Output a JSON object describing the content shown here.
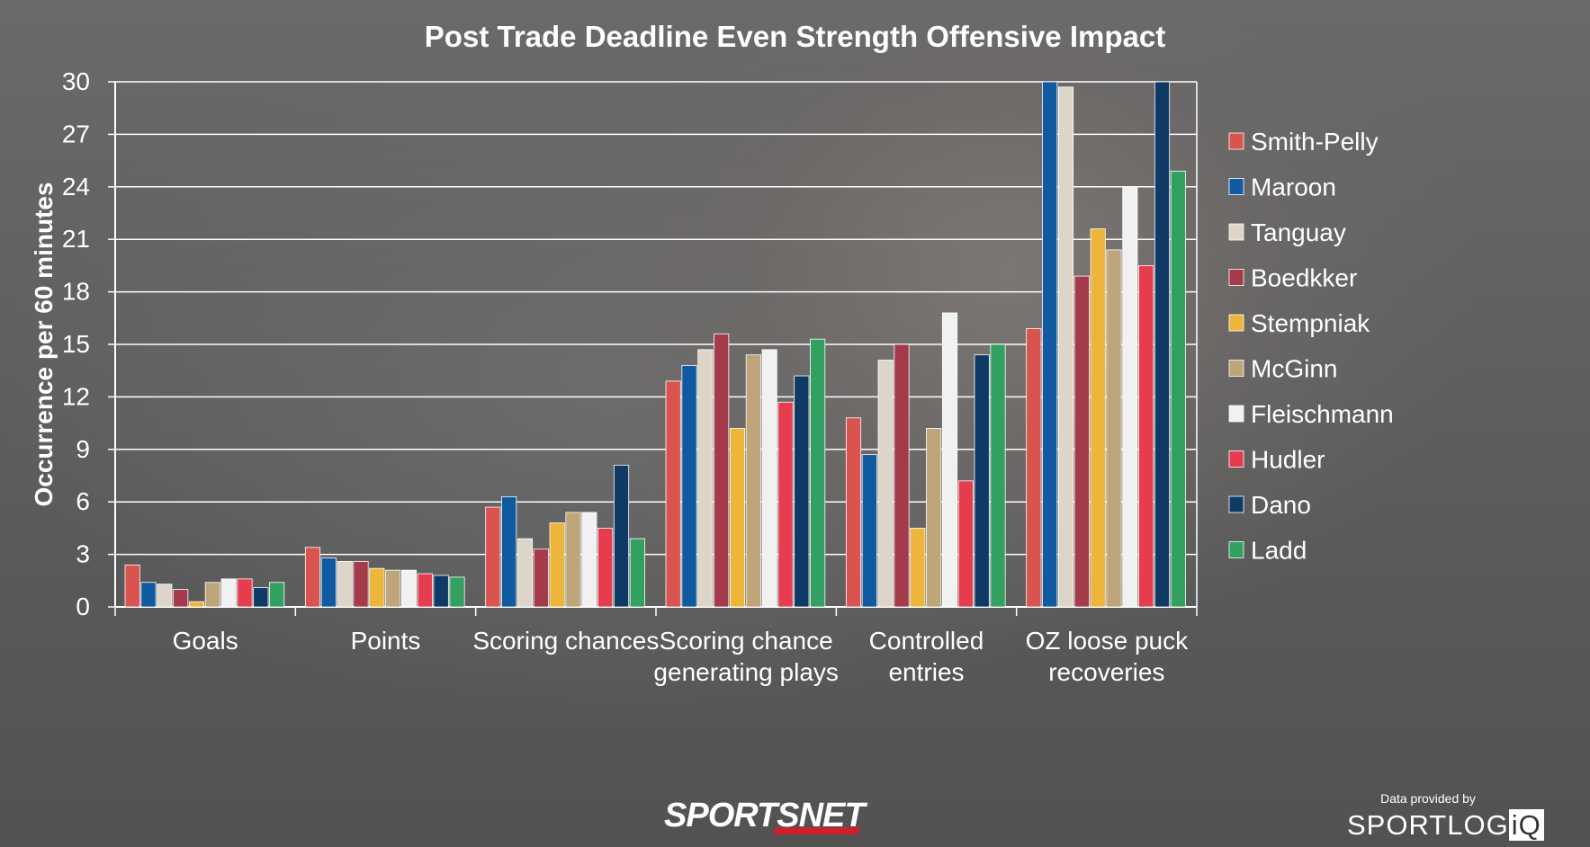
{
  "title": "Post Trade Deadline Even Strength Offensive Impact",
  "credit": {
    "provided_by": "Data provided by",
    "sportsnet": "SPORTSNET",
    "sportlogiq_main": "SPORTLOG",
    "sportlogiq_iq": "iQ"
  },
  "chart_data": {
    "type": "bar",
    "title": "Post Trade Deadline Even Strength Offensive Impact",
    "xlabel": "",
    "ylabel": "Occurrence per 60 minutes",
    "ylim": [
      0,
      30
    ],
    "yticks": [
      0,
      3,
      6,
      9,
      12,
      15,
      18,
      21,
      24,
      27,
      30
    ],
    "grid": true,
    "legend_position": "right",
    "categories": [
      [
        "Goals"
      ],
      [
        "Points"
      ],
      [
        "Scoring chances"
      ],
      [
        "Scoring chance",
        "generating plays"
      ],
      [
        "Controlled",
        "entries"
      ],
      [
        "OZ loose puck",
        "recoveries"
      ]
    ],
    "series": [
      {
        "name": "Smith-Pelly",
        "color": "#d9534f",
        "values": [
          2.4,
          3.4,
          5.7,
          12.9,
          10.8,
          15.9
        ]
      },
      {
        "name": "Maroon",
        "color": "#0f5aa0",
        "values": [
          1.4,
          2.8,
          6.3,
          13.8,
          8.7,
          30
        ]
      },
      {
        "name": "Tanguay",
        "color": "#ddd6c8",
        "values": [
          1.3,
          2.6,
          3.9,
          14.7,
          14.1,
          29.7
        ]
      },
      {
        "name": "Boedkker",
        "color": "#a43a4a",
        "values": [
          1.0,
          2.6,
          3.3,
          15.6,
          15.0,
          18.9
        ]
      },
      {
        "name": "Stempniak",
        "color": "#edb53a",
        "values": [
          0.3,
          2.2,
          4.8,
          10.2,
          4.5,
          21.6
        ]
      },
      {
        "name": "McGinn",
        "color": "#bfa57a",
        "values": [
          1.4,
          2.1,
          5.4,
          14.4,
          10.2,
          20.4
        ]
      },
      {
        "name": "Fleischmann",
        "color": "#f1f1f1",
        "values": [
          1.6,
          2.1,
          5.4,
          14.7,
          16.8,
          24.0
        ]
      },
      {
        "name": "Hudler",
        "color": "#e63c4e",
        "values": [
          1.6,
          1.9,
          4.5,
          11.7,
          7.2,
          19.5
        ]
      },
      {
        "name": "Dano",
        "color": "#0f3a66",
        "values": [
          1.1,
          1.8,
          8.1,
          13.2,
          14.4,
          30
        ]
      },
      {
        "name": "Ladd",
        "color": "#31a060",
        "values": [
          1.4,
          1.7,
          3.9,
          15.3,
          15.0,
          24.9
        ]
      }
    ]
  }
}
